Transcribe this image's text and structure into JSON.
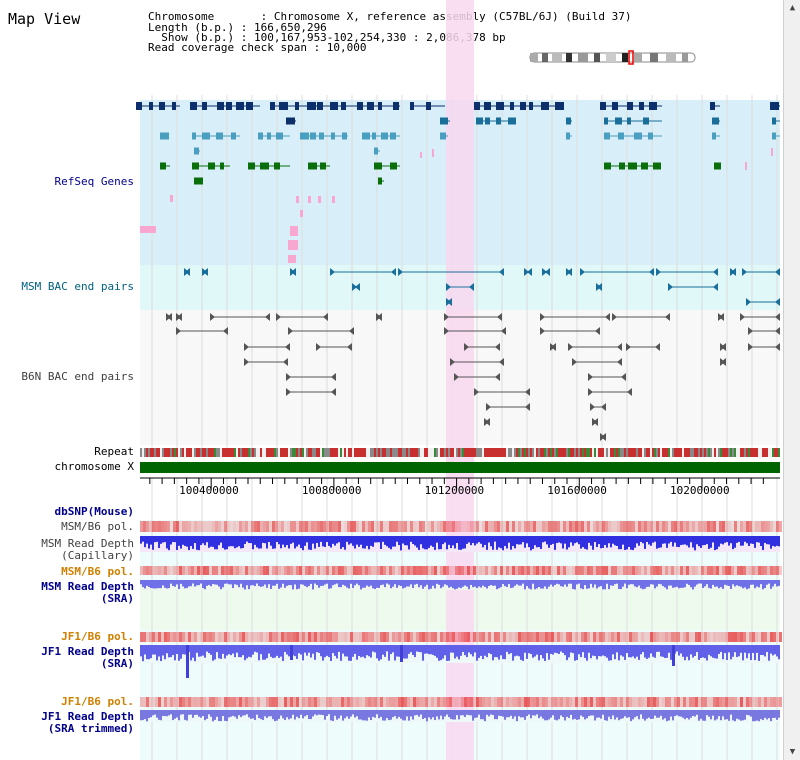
{
  "window": {
    "title": "Map View"
  },
  "header": {
    "chromosome": "Chromosome       : Chromosome X, reference assembly (C57BL/6J) (Build 37)",
    "length": "Length (b.p.) : 166,650,296",
    "show": "  Show (b.p.) : 100,167,953-102,254,330 : 2,086,378 bp",
    "coverage": "Read coverage check span : 10,000"
  },
  "tracks": {
    "refseq": {
      "label": "RefSeq Genes"
    },
    "msm_bac": {
      "label": "MSM BAC end pairs"
    },
    "b6n_bac": {
      "label": "B6N BAC end pairs"
    },
    "repeat": {
      "label": "Repeat"
    },
    "chromosome": {
      "label": "chromosome X"
    },
    "dbsnp": {
      "label": "dbSNP(Mouse)"
    },
    "msm_pol1": {
      "label": "MSM/B6 pol."
    },
    "msm_depth_cap": {
      "label1": "MSM Read Depth",
      "label2": "(Capillary)"
    },
    "msm_pol2": {
      "label": "MSM/B6 pol."
    },
    "msm_depth_sra": {
      "label1": "MSM Read Depth",
      "label2": "(SRA)"
    },
    "jf1_pol1": {
      "label": "JF1/B6 pol."
    },
    "jf1_depth_sra": {
      "label1": "JF1 Read Depth",
      "label2": "(SRA)"
    },
    "jf1_pol2": {
      "label": "JF1/B6 pol."
    },
    "jf1_depth_trim": {
      "label1": "JF1 Read Depth",
      "label2": "(SRA trimmed)"
    }
  },
  "axis": {
    "ticks": [
      {
        "label": "100400000",
        "pos": 100400000
      },
      {
        "label": "100800000",
        "pos": 100800000
      },
      {
        "label": "101200000",
        "pos": 101200000
      },
      {
        "label": "101600000",
        "pos": 101600000
      },
      {
        "label": "102000000",
        "pos": 102000000
      }
    ],
    "range": [
      100167953,
      102254330
    ]
  },
  "colors": {
    "refseq_bg": "#d8eef8",
    "msm_bg": "#e0f8f8",
    "b6n_bg": "#f8f8f8",
    "highlight": "#f8d8f0",
    "label_blue": "#00008b",
    "label_orange": "#d08000",
    "label_teal": "#006080",
    "label_gray": "#404040",
    "chromosome_bar": "#006400"
  }
}
